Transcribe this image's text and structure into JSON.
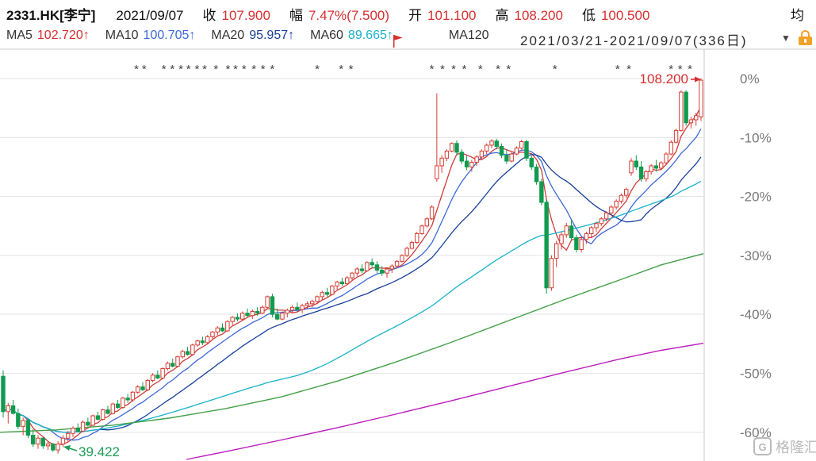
{
  "header": {
    "symbol": "2331.HK[李宁]",
    "date": "2021/09/07",
    "fields": [
      {
        "label": "收",
        "value": "107.900"
      },
      {
        "label": "幅",
        "value": "7.47%(7.500)"
      },
      {
        "label": "开",
        "value": "101.100"
      },
      {
        "label": "高",
        "value": "108.200"
      },
      {
        "label": "低",
        "value": "100.500"
      },
      {
        "label": "均",
        "value": ""
      }
    ]
  },
  "ma_bar": {
    "items": [
      {
        "label": "MA5",
        "value": "102.720↑",
        "color": "#d62f2f"
      },
      {
        "label": "MA10",
        "value": "100.705↑",
        "color": "#3e68d8"
      },
      {
        "label": "MA20",
        "value": "95.957↑",
        "color": "#183f9b"
      },
      {
        "label": "MA60",
        "value": "89.665↑",
        "color": "#18b2c9"
      },
      {
        "label": "MA120",
        "value": "",
        "color": "#43a047"
      }
    ],
    "period_label": "2021/03/21-2021/09/07(336日)",
    "dropdown_icon": "▼"
  },
  "axis": {
    "ticks": [
      "0%",
      "-10%",
      "-20%",
      "-30%",
      "-40%",
      "-50%",
      "-60%"
    ],
    "tick_values": [
      0,
      -10,
      -20,
      -30,
      -40,
      -50,
      -60
    ]
  },
  "annotations": {
    "high": {
      "text": "108.200"
    },
    "low": {
      "text": "39.422"
    }
  },
  "watermark": {
    "text": "格隆汇",
    "logo": "G"
  },
  "colors": {
    "red_text": "#d62f2f",
    "green_text": "#1d9e54",
    "up": "#d43c32",
    "down": "#109b4e",
    "ma5": "#cf3b3b",
    "ma10": "#3e68d8",
    "ma20": "#183f9b",
    "ma60": "#18b2c9",
    "ma120": "#43a047",
    "ma250": "#bb1dbb",
    "grid": "#e5e5e5",
    "axis_text": "#787878"
  },
  "chart_data": {
    "type": "candlestick",
    "symbol": "2331.HK",
    "name": "李宁",
    "title": "2331.HK[李宁] daily candlestick with MA overlays",
    "y_axis": "percent change relative to period high 108.200, right-hand axis",
    "y_range": [
      -65,
      1
    ],
    "legend_position": "top",
    "grid": true,
    "summary": {
      "close": 107.9,
      "open": 101.1,
      "high": 108.2,
      "low": 100.5,
      "change_pct": 7.47,
      "change_abs": 7.5,
      "period_high": 108.2,
      "period_low": 39.422,
      "ma5": 102.72,
      "ma10": 100.705,
      "ma20": 95.957,
      "ma60": 89.665
    },
    "candles_ohlc_pct": [
      [
        -50.5,
        -49.5,
        -57.5,
        -56.5
      ],
      [
        -56.5,
        -55.0,
        -58.5,
        -55.5
      ],
      [
        -55.5,
        -54.5,
        -57.0,
        -56.8
      ],
      [
        -56.8,
        -56.0,
        -59.5,
        -59.0
      ],
      [
        -59.0,
        -57.5,
        -60.5,
        -58.0
      ],
      [
        -58.0,
        -57.8,
        -61.0,
        -60.5
      ],
      [
        -60.5,
        -59.5,
        -62.5,
        -62.0
      ],
      [
        -62.0,
        -60.5,
        -62.8,
        -61.0
      ],
      [
        -61.0,
        -60.8,
        -62.8,
        -62.3
      ],
      [
        -62.3,
        -61.5,
        -63.0,
        -62.0
      ],
      [
        -62.0,
        -61.8,
        -63.3,
        -63.0
      ],
      [
        -63.0,
        -61.5,
        -63.6,
        -62.0
      ],
      [
        -62.0,
        -60.5,
        -62.5,
        -61.0
      ],
      [
        -61.0,
        -59.8,
        -61.5,
        -60.2
      ],
      [
        -60.2,
        -59.0,
        -60.8,
        -59.3
      ],
      [
        -59.3,
        -58.5,
        -60.0,
        -59.8
      ],
      [
        -59.8,
        -58.0,
        -60.0,
        -58.3
      ],
      [
        -58.3,
        -57.5,
        -59.0,
        -58.8
      ],
      [
        -58.8,
        -57.0,
        -59.0,
        -57.2
      ],
      [
        -57.2,
        -56.5,
        -58.0,
        -57.8
      ],
      [
        -57.8,
        -56.0,
        -58.0,
        -56.2
      ],
      [
        -56.2,
        -55.5,
        -57.0,
        -56.8
      ],
      [
        -56.8,
        -55.0,
        -57.0,
        -55.2
      ],
      [
        -55.2,
        -54.5,
        -56.0,
        -55.8
      ],
      [
        -55.8,
        -54.0,
        -56.0,
        -54.2
      ],
      [
        -54.2,
        -53.5,
        -55.0,
        -54.5
      ],
      [
        -54.5,
        -53.0,
        -54.8,
        -53.2
      ],
      [
        -53.2,
        -52.0,
        -53.5,
        -52.3
      ],
      [
        -52.3,
        -51.5,
        -53.0,
        -52.8
      ],
      [
        -52.8,
        -51.0,
        -53.0,
        -51.2
      ],
      [
        -51.2,
        -50.0,
        -51.5,
        -50.3
      ],
      [
        -50.3,
        -49.5,
        -51.0,
        -50.8
      ],
      [
        -50.8,
        -49.0,
        -51.0,
        -49.2
      ],
      [
        -49.2,
        -48.0,
        -49.5,
        -48.3
      ],
      [
        -48.3,
        -47.5,
        -49.0,
        -48.8
      ],
      [
        -48.8,
        -47.0,
        -49.0,
        -47.2
      ],
      [
        -47.2,
        -46.0,
        -47.5,
        -46.3
      ],
      [
        -46.3,
        -45.5,
        -47.0,
        -46.8
      ],
      [
        -46.8,
        -45.0,
        -47.0,
        -45.2
      ],
      [
        -45.2,
        -44.3,
        -45.5,
        -44.5
      ],
      [
        -44.5,
        -43.8,
        -45.2,
        -44.8
      ],
      [
        -44.8,
        -43.5,
        -45.0,
        -43.8
      ],
      [
        -43.8,
        -42.8,
        -44.2,
        -43.0
      ],
      [
        -43.0,
        -42.0,
        -43.5,
        -42.3
      ],
      [
        -42.3,
        -41.5,
        -43.0,
        -42.8
      ],
      [
        -42.8,
        -41.0,
        -43.0,
        -41.2
      ],
      [
        -41.2,
        -40.3,
        -41.8,
        -40.5
      ],
      [
        -40.5,
        -39.8,
        -41.2,
        -40.8
      ],
      [
        -40.8,
        -39.5,
        -41.0,
        -39.8
      ],
      [
        -39.8,
        -39.0,
        -40.5,
        -40.2
      ],
      [
        -40.2,
        -39.2,
        -40.8,
        -39.5
      ],
      [
        -39.5,
        -38.8,
        -40.2,
        -39.8
      ],
      [
        -39.8,
        -38.5,
        -40.0,
        -38.8
      ],
      [
        -38.8,
        -36.8,
        -39.0,
        -37.0
      ],
      [
        -37.0,
        -36.5,
        -40.5,
        -40.0
      ],
      [
        -40.0,
        -39.0,
        -41.0,
        -40.8
      ],
      [
        -40.8,
        -39.5,
        -41.0,
        -39.8
      ],
      [
        -39.8,
        -39.0,
        -40.5,
        -39.3
      ],
      [
        -39.3,
        -38.5,
        -39.8,
        -38.8
      ],
      [
        -38.8,
        -38.0,
        -39.5,
        -39.2
      ],
      [
        -39.2,
        -38.2,
        -39.8,
        -38.5
      ],
      [
        -38.5,
        -37.8,
        -39.0,
        -38.2
      ],
      [
        -38.2,
        -37.5,
        -38.8,
        -37.8
      ],
      [
        -37.8,
        -36.8,
        -38.0,
        -37.0
      ],
      [
        -37.0,
        -36.0,
        -37.5,
        -36.3
      ],
      [
        -36.3,
        -35.5,
        -37.0,
        -36.6
      ],
      [
        -36.6,
        -35.0,
        -36.8,
        -35.2
      ],
      [
        -35.2,
        -34.3,
        -35.8,
        -34.5
      ],
      [
        -34.5,
        -33.8,
        -35.2,
        -34.8
      ],
      [
        -34.8,
        -33.5,
        -35.0,
        -33.8
      ],
      [
        -33.8,
        -32.8,
        -34.2,
        -33.0
      ],
      [
        -33.0,
        -32.0,
        -33.5,
        -32.3
      ],
      [
        -32.3,
        -31.5,
        -33.0,
        -32.6
      ],
      [
        -32.6,
        -31.0,
        -32.8,
        -31.2
      ],
      [
        -31.2,
        -30.5,
        -32.0,
        -31.6
      ],
      [
        -31.6,
        -31.0,
        -33.0,
        -32.5
      ],
      [
        -32.5,
        -31.8,
        -33.5,
        -33.0
      ],
      [
        -33.0,
        -32.0,
        -33.8,
        -32.3
      ],
      [
        -32.3,
        -31.5,
        -33.0,
        -31.8
      ],
      [
        -31.8,
        -30.8,
        -32.2,
        -31.0
      ],
      [
        -31.0,
        -29.8,
        -31.2,
        -30.0
      ],
      [
        -30.0,
        -28.5,
        -30.3,
        -28.8
      ],
      [
        -28.8,
        -27.5,
        -29.0,
        -27.8
      ],
      [
        -27.8,
        -26.0,
        -28.0,
        -26.3
      ],
      [
        -26.3,
        -24.8,
        -26.5,
        -25.0
      ],
      [
        -25.0,
        -23.5,
        -25.3,
        -23.8
      ],
      [
        -23.8,
        -21.5,
        -24.0,
        -21.8
      ],
      [
        -17.0,
        -2.5,
        -17.5,
        -14.8
      ],
      [
        -14.8,
        -13.0,
        -16.0,
        -13.5
      ],
      [
        -13.5,
        -12.0,
        -14.0,
        -12.3
      ],
      [
        -12.3,
        -10.8,
        -12.5,
        -11.0
      ],
      [
        -11.0,
        -10.5,
        -13.0,
        -12.5
      ],
      [
        -12.5,
        -12.0,
        -14.5,
        -14.0
      ],
      [
        -14.0,
        -13.0,
        -15.5,
        -15.0
      ],
      [
        -15.0,
        -13.8,
        -15.8,
        -14.2
      ],
      [
        -14.2,
        -13.0,
        -14.8,
        -13.3
      ],
      [
        -13.3,
        -12.0,
        -13.8,
        -12.3
      ],
      [
        -12.3,
        -11.0,
        -12.8,
        -11.3
      ],
      [
        -11.3,
        -10.3,
        -11.8,
        -10.6
      ],
      [
        -10.6,
        -10.2,
        -12.0,
        -11.5
      ],
      [
        -11.5,
        -11.0,
        -13.5,
        -13.0
      ],
      [
        -13.0,
        -12.0,
        -14.5,
        -14.0
      ],
      [
        -14.0,
        -12.5,
        -14.2,
        -12.8
      ],
      [
        -12.8,
        -11.5,
        -13.0,
        -11.8
      ],
      [
        -11.8,
        -10.4,
        -12.0,
        -10.7
      ],
      [
        -10.7,
        -10.4,
        -14.0,
        -13.5
      ],
      [
        -13.5,
        -13.0,
        -15.5,
        -15.0
      ],
      [
        -15.0,
        -14.5,
        -18.0,
        -17.5
      ],
      [
        -17.5,
        -17.0,
        -21.5,
        -21.0
      ],
      [
        -21.0,
        -20.5,
        -36.5,
        -35.5
      ],
      [
        -35.5,
        -30.0,
        -36.0,
        -30.5
      ],
      [
        -30.5,
        -27.5,
        -32.0,
        -28.0
      ],
      [
        -28.0,
        -26.0,
        -29.0,
        -26.5
      ],
      [
        -26.5,
        -24.5,
        -27.0,
        -25.0
      ],
      [
        -25.0,
        -24.0,
        -27.5,
        -27.0
      ],
      [
        -27.0,
        -26.5,
        -29.5,
        -29.0
      ],
      [
        -29.0,
        -27.0,
        -29.5,
        -27.3
      ],
      [
        -27.3,
        -26.0,
        -28.0,
        -26.3
      ],
      [
        -26.3,
        -25.0,
        -27.0,
        -25.3
      ],
      [
        -25.3,
        -24.3,
        -26.0,
        -24.6
      ],
      [
        -24.6,
        -23.5,
        -25.0,
        -23.8
      ],
      [
        -23.8,
        -22.5,
        -24.2,
        -22.8
      ],
      [
        -22.8,
        -21.5,
        -23.2,
        -21.8
      ],
      [
        -21.8,
        -20.5,
        -22.2,
        -20.8
      ],
      [
        -20.8,
        -19.5,
        -21.2,
        -19.8
      ],
      [
        -19.8,
        -18.5,
        -20.3,
        -18.8
      ],
      [
        -16.0,
        -13.5,
        -16.5,
        -14.0
      ],
      [
        -14.0,
        -13.0,
        -15.5,
        -15.0
      ],
      [
        -15.0,
        -14.0,
        -17.5,
        -17.0
      ],
      [
        -17.0,
        -15.5,
        -17.5,
        -15.8
      ],
      [
        -15.8,
        -14.5,
        -16.3,
        -14.8
      ],
      [
        -14.8,
        -13.8,
        -15.8,
        -15.2
      ],
      [
        -15.2,
        -14.0,
        -15.5,
        -14.3
      ],
      [
        -14.3,
        -12.5,
        -14.5,
        -12.8
      ],
      [
        -12.8,
        -10.5,
        -13.0,
        -10.8
      ],
      [
        -10.8,
        -8.5,
        -11.0,
        -8.8
      ],
      [
        -8.8,
        -2.0,
        -9.0,
        -2.3
      ],
      [
        -2.3,
        -2.0,
        -8.0,
        -7.5
      ],
      [
        -7.5,
        -6.5,
        -8.5,
        -7.0
      ],
      [
        -7.0,
        -5.8,
        -8.0,
        -6.3
      ],
      [
        -6.5,
        0.0,
        -7.2,
        -0.28
      ]
    ],
    "ma_windows_from_closes": {
      "ma5": 5,
      "ma10": 10,
      "ma20": 20,
      "ma60": 60
    },
    "ma120_points": [
      [
        0,
        -60.0
      ],
      [
        0.08,
        -59.6
      ],
      [
        0.16,
        -58.8
      ],
      [
        0.24,
        -57.6
      ],
      [
        0.32,
        -56.0
      ],
      [
        0.4,
        -54.0
      ],
      [
        0.48,
        -51.3
      ],
      [
        0.56,
        -48.2
      ],
      [
        0.64,
        -44.8
      ],
      [
        0.72,
        -41.2
      ],
      [
        0.8,
        -37.6
      ],
      [
        0.88,
        -34.2
      ],
      [
        0.94,
        -31.6
      ],
      [
        1.0,
        -29.7
      ]
    ],
    "ma250_points": [
      [
        0.265,
        -64.6
      ],
      [
        0.32,
        -63.3
      ],
      [
        0.4,
        -61.3
      ],
      [
        0.48,
        -59.2
      ],
      [
        0.56,
        -57.0
      ],
      [
        0.64,
        -54.7
      ],
      [
        0.72,
        -52.3
      ],
      [
        0.8,
        -49.9
      ],
      [
        0.88,
        -47.6
      ],
      [
        0.94,
        -46.1
      ],
      [
        1.0,
        -44.9
      ]
    ],
    "event_markers": {
      "symbol": "*",
      "star_x": [
        0.194,
        0.205,
        0.233,
        0.245,
        0.257,
        0.268,
        0.28,
        0.291,
        0.307,
        0.324,
        0.335,
        0.347,
        0.361,
        0.374,
        0.387,
        0.451,
        0.485,
        0.499,
        0.614,
        0.629,
        0.645,
        0.66,
        0.683,
        0.708,
        0.723,
        0.789,
        0.878,
        0.894,
        0.954,
        0.967,
        0.981
      ],
      "flag_x": 0.56
    }
  }
}
